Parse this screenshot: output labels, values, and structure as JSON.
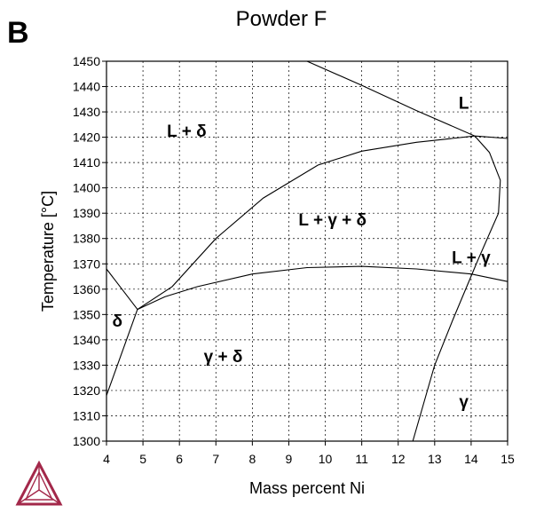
{
  "panel_letter": "B",
  "chart_data": {
    "type": "line",
    "title": "Powder F",
    "xlabel": "Mass percent Ni",
    "ylabel": "Temperature [°C]",
    "xlim": [
      4,
      15
    ],
    "ylim": [
      1300,
      1450
    ],
    "grid": true,
    "x_ticks": [
      4,
      5,
      6,
      7,
      8,
      9,
      10,
      11,
      12,
      13,
      14,
      15
    ],
    "y_ticks": [
      1300,
      1310,
      1320,
      1330,
      1340,
      1350,
      1360,
      1370,
      1380,
      1390,
      1400,
      1410,
      1420,
      1430,
      1440,
      1450
    ],
    "series": [
      {
        "points": [
          [
            4,
            1368
          ],
          [
            4.85,
            1352
          ]
        ]
      },
      {
        "points": [
          [
            4,
            1318
          ],
          [
            4.85,
            1352
          ]
        ]
      },
      {
        "points": [
          [
            4.85,
            1352
          ],
          [
            5.8,
            1361
          ],
          [
            7,
            1380
          ],
          [
            8.3,
            1396
          ],
          [
            9.8,
            1409
          ],
          [
            11,
            1414.5
          ],
          [
            12.5,
            1418
          ],
          [
            14.1,
            1420.5
          ]
        ]
      },
      {
        "points": [
          [
            4.85,
            1352
          ],
          [
            5.6,
            1357
          ],
          [
            6.5,
            1361
          ],
          [
            8,
            1366
          ],
          [
            9.5,
            1368.5
          ],
          [
            11,
            1369
          ],
          [
            12.5,
            1368
          ],
          [
            14,
            1366
          ],
          [
            15,
            1363
          ]
        ]
      },
      {
        "points": [
          [
            9.5,
            1450
          ],
          [
            11,
            1440.5
          ],
          [
            12.5,
            1430.5
          ],
          [
            14.1,
            1420.5
          ],
          [
            15,
            1419.5
          ]
        ]
      },
      {
        "points": [
          [
            14.1,
            1420.5
          ],
          [
            14.5,
            1414
          ],
          [
            14.8,
            1403
          ],
          [
            14.75,
            1390
          ],
          [
            14.2,
            1372
          ],
          [
            13.5,
            1348
          ],
          [
            13,
            1330
          ],
          [
            12.4,
            1300
          ]
        ]
      }
    ],
    "annotations": [
      "L",
      "L + δ",
      "L + γ + δ",
      "L + γ",
      "δ",
      "γ + δ",
      "γ"
    ]
  },
  "logo": {
    "name": "triangle-logo-icon",
    "color": "#a3284a"
  }
}
